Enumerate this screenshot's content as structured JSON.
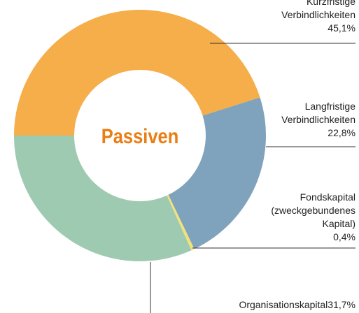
{
  "chart_data": {
    "type": "donut",
    "title": "Passiven",
    "categories": [
      "Kurzfristige\nVerbindlichkeiten",
      "Langfristige\nVerbindlichkeiten",
      "Fondskapital\n(zweckgebundenes\nKapital)",
      "Organisationskapital"
    ],
    "values": [
      45.1,
      22.8,
      0.4,
      31.7
    ],
    "value_labels": [
      "45,1%",
      "22,8%",
      "0,4%",
      "31,7%"
    ],
    "colors": [
      "#f5ae4a",
      "#7fa2bd",
      "#f3e27a",
      "#9ecab2"
    ]
  }
}
